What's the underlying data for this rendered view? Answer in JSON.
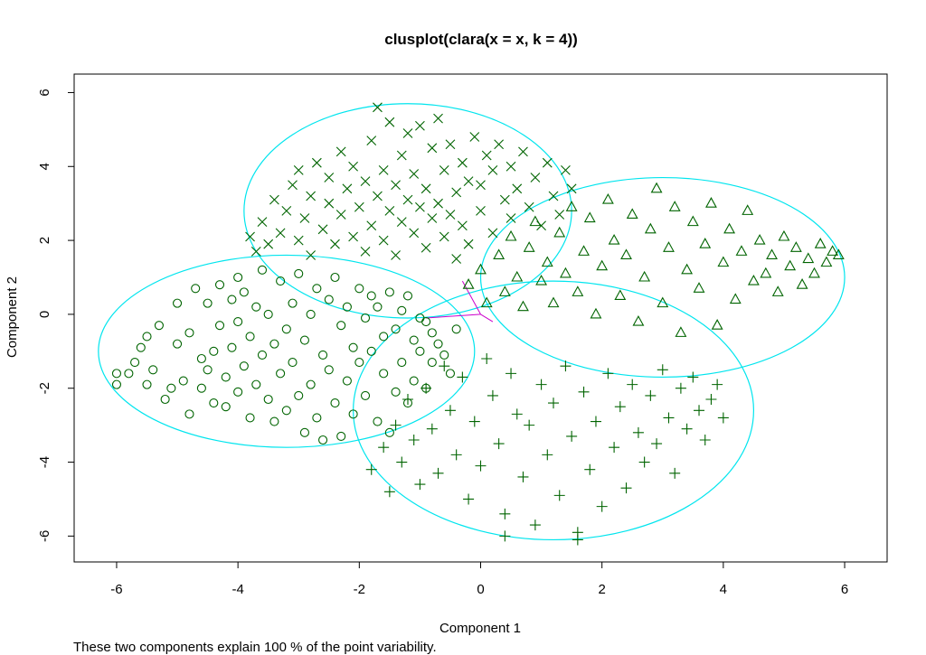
{
  "chart_data": {
    "type": "scatter",
    "title": "clusplot(clara(x = x, k = 4))",
    "xlabel": "Component 1",
    "ylabel": "Component 2",
    "footnote": "These two components explain 100 % of the point variability.",
    "xlim": [
      -6.7,
      6.7
    ],
    "ylim": [
      -6.7,
      6.5
    ],
    "xticks": [
      -6,
      -4,
      -2,
      0,
      2,
      4,
      6
    ],
    "yticks": [
      -6,
      -4,
      -2,
      0,
      2,
      4,
      6
    ],
    "grid": false,
    "legend": "none",
    "colors": {
      "points": "#006400",
      "ellipses": "#00e5ee",
      "connectors": "#cc00cc",
      "axes": "#000000",
      "background": "#ffffff"
    },
    "ellipses": [
      {
        "cx": -3.2,
        "cy": -1.0,
        "rx": 3.1,
        "ry": 2.6
      },
      {
        "cx": -1.2,
        "cy": 2.8,
        "rx": 2.7,
        "ry": 2.9
      },
      {
        "cx": 3.0,
        "cy": 1.0,
        "rx": 3.0,
        "ry": 2.7
      },
      {
        "cx": 1.2,
        "cy": -2.6,
        "rx": 3.3,
        "ry": 3.5
      }
    ],
    "connectors": [
      {
        "from": [
          -0.3,
          0.9
        ],
        "to": [
          0.0,
          0.0
        ]
      },
      {
        "from": [
          -0.9,
          -0.1
        ],
        "to": [
          0.0,
          0.0
        ]
      },
      {
        "from": [
          0.0,
          0.0
        ],
        "to": [
          0.2,
          -0.2
        ]
      }
    ],
    "series": [
      {
        "marker": "circle",
        "points": [
          [
            -6.0,
            -1.6
          ],
          [
            -6.0,
            -1.9
          ],
          [
            -5.8,
            -1.6
          ],
          [
            -5.7,
            -1.3
          ],
          [
            -5.6,
            -0.9
          ],
          [
            -5.5,
            -1.9
          ],
          [
            -5.5,
            -0.6
          ],
          [
            -5.4,
            -1.5
          ],
          [
            -5.3,
            -0.3
          ],
          [
            -5.2,
            -2.3
          ],
          [
            -5.1,
            -2.0
          ],
          [
            -5.0,
            -0.8
          ],
          [
            -5.0,
            0.3
          ],
          [
            -4.9,
            -1.8
          ],
          [
            -4.8,
            -0.5
          ],
          [
            -4.8,
            -2.7
          ],
          [
            -4.7,
            0.7
          ],
          [
            -4.6,
            -1.2
          ],
          [
            -4.6,
            -2.0
          ],
          [
            -4.5,
            0.3
          ],
          [
            -4.5,
            -1.5
          ],
          [
            -4.4,
            -1.0
          ],
          [
            -4.4,
            -2.4
          ],
          [
            -4.3,
            0.8
          ],
          [
            -4.3,
            -0.3
          ],
          [
            -4.2,
            -1.7
          ],
          [
            -4.2,
            -2.5
          ],
          [
            -4.1,
            0.4
          ],
          [
            -4.1,
            -0.9
          ],
          [
            -4.0,
            1.0
          ],
          [
            -4.0,
            -0.2
          ],
          [
            -4.0,
            -2.1
          ],
          [
            -3.9,
            -1.4
          ],
          [
            -3.9,
            0.6
          ],
          [
            -3.8,
            -2.8
          ],
          [
            -3.8,
            -0.6
          ],
          [
            -3.7,
            0.2
          ],
          [
            -3.7,
            -1.9
          ],
          [
            -3.6,
            1.2
          ],
          [
            -3.6,
            -1.1
          ],
          [
            -3.5,
            -2.3
          ],
          [
            -3.5,
            0.0
          ],
          [
            -3.4,
            -0.8
          ],
          [
            -3.4,
            -2.9
          ],
          [
            -3.3,
            0.9
          ],
          [
            -3.3,
            -1.6
          ],
          [
            -3.2,
            -0.4
          ],
          [
            -3.2,
            -2.6
          ],
          [
            -3.1,
            0.3
          ],
          [
            -3.1,
            -1.3
          ],
          [
            -3.0,
            1.1
          ],
          [
            -3.0,
            -2.2
          ],
          [
            -2.9,
            -0.7
          ],
          [
            -2.9,
            -3.2
          ],
          [
            -2.8,
            0.0
          ],
          [
            -2.8,
            -1.9
          ],
          [
            -2.7,
            0.7
          ],
          [
            -2.7,
            -2.8
          ],
          [
            -2.6,
            -1.1
          ],
          [
            -2.6,
            -3.4
          ],
          [
            -2.5,
            0.4
          ],
          [
            -2.5,
            -1.5
          ],
          [
            -2.4,
            1.0
          ],
          [
            -2.4,
            -2.4
          ],
          [
            -2.3,
            -0.3
          ],
          [
            -2.3,
            -3.3
          ],
          [
            -2.2,
            0.2
          ],
          [
            -2.2,
            -1.8
          ],
          [
            -2.1,
            -0.9
          ],
          [
            -2.1,
            -2.7
          ],
          [
            -2.0,
            0.7
          ],
          [
            -2.0,
            -1.3
          ],
          [
            -1.9,
            -0.1
          ],
          [
            -1.9,
            -2.2
          ],
          [
            -1.8,
            0.5
          ],
          [
            -1.8,
            -1.0
          ],
          [
            -1.7,
            0.2
          ],
          [
            -1.7,
            -2.9
          ],
          [
            -1.6,
            -0.6
          ],
          [
            -1.6,
            -1.6
          ],
          [
            -1.5,
            0.6
          ],
          [
            -1.5,
            -3.2
          ],
          [
            -1.4,
            -0.4
          ],
          [
            -1.4,
            -2.1
          ],
          [
            -1.3,
            0.1
          ],
          [
            -1.3,
            -1.3
          ],
          [
            -1.2,
            0.5
          ],
          [
            -1.2,
            -2.4
          ],
          [
            -1.1,
            -0.7
          ],
          [
            -1.1,
            -1.8
          ],
          [
            -1.0,
            -0.1
          ],
          [
            -1.0,
            -1.0
          ],
          [
            -0.9,
            -0.2
          ],
          [
            -0.9,
            -2.0
          ],
          [
            -0.8,
            -0.5
          ],
          [
            -0.8,
            -1.3
          ],
          [
            -0.7,
            -0.8
          ],
          [
            -0.6,
            -1.1
          ],
          [
            -0.5,
            -1.6
          ],
          [
            -0.4,
            -0.4
          ]
        ]
      },
      {
        "marker": "cross",
        "points": [
          [
            -3.8,
            2.1
          ],
          [
            -3.7,
            1.7
          ],
          [
            -3.6,
            2.5
          ],
          [
            -3.5,
            1.9
          ],
          [
            -3.4,
            3.1
          ],
          [
            -3.3,
            2.2
          ],
          [
            -3.2,
            2.8
          ],
          [
            -3.1,
            3.5
          ],
          [
            -3.0,
            2.0
          ],
          [
            -3.0,
            3.9
          ],
          [
            -2.9,
            2.6
          ],
          [
            -2.8,
            3.2
          ],
          [
            -2.8,
            1.6
          ],
          [
            -2.7,
            4.1
          ],
          [
            -2.6,
            2.3
          ],
          [
            -2.5,
            3.0
          ],
          [
            -2.5,
            3.7
          ],
          [
            -2.4,
            1.9
          ],
          [
            -2.3,
            4.4
          ],
          [
            -2.3,
            2.7
          ],
          [
            -2.2,
            3.4
          ],
          [
            -2.1,
            2.1
          ],
          [
            -2.1,
            4.0
          ],
          [
            -2.0,
            2.9
          ],
          [
            -1.9,
            3.6
          ],
          [
            -1.9,
            1.7
          ],
          [
            -1.8,
            4.7
          ],
          [
            -1.8,
            2.4
          ],
          [
            -1.7,
            3.2
          ],
          [
            -1.7,
            5.6
          ],
          [
            -1.6,
            2.0
          ],
          [
            -1.6,
            3.9
          ],
          [
            -1.5,
            2.8
          ],
          [
            -1.5,
            5.2
          ],
          [
            -1.4,
            3.5
          ],
          [
            -1.4,
            1.6
          ],
          [
            -1.3,
            4.3
          ],
          [
            -1.3,
            2.5
          ],
          [
            -1.2,
            3.1
          ],
          [
            -1.2,
            4.9
          ],
          [
            -1.1,
            2.2
          ],
          [
            -1.1,
            3.8
          ],
          [
            -1.0,
            2.9
          ],
          [
            -1.0,
            5.1
          ],
          [
            -0.9,
            1.8
          ],
          [
            -0.9,
            3.4
          ],
          [
            -0.8,
            4.5
          ],
          [
            -0.8,
            2.6
          ],
          [
            -0.7,
            3.0
          ],
          [
            -0.7,
            5.3
          ],
          [
            -0.6,
            2.1
          ],
          [
            -0.6,
            3.9
          ],
          [
            -0.5,
            2.7
          ],
          [
            -0.5,
            4.6
          ],
          [
            -0.4,
            1.5
          ],
          [
            -0.4,
            3.3
          ],
          [
            -0.3,
            2.4
          ],
          [
            -0.3,
            4.1
          ],
          [
            -0.2,
            3.6
          ],
          [
            -0.2,
            1.9
          ],
          [
            -0.1,
            4.8
          ],
          [
            0.0,
            2.8
          ],
          [
            0.0,
            3.5
          ],
          [
            0.1,
            4.3
          ],
          [
            0.2,
            2.2
          ],
          [
            0.2,
            3.9
          ],
          [
            0.3,
            4.6
          ],
          [
            0.4,
            3.1
          ],
          [
            0.5,
            2.6
          ],
          [
            0.5,
            4.0
          ],
          [
            0.6,
            3.4
          ],
          [
            0.7,
            4.4
          ],
          [
            0.8,
            2.9
          ],
          [
            0.9,
            3.7
          ],
          [
            1.0,
            2.4
          ],
          [
            1.1,
            4.1
          ],
          [
            1.2,
            3.2
          ],
          [
            1.3,
            2.7
          ],
          [
            1.4,
            3.9
          ],
          [
            1.5,
            3.4
          ]
        ]
      },
      {
        "marker": "triangle",
        "points": [
          [
            -0.2,
            0.8
          ],
          [
            0.0,
            1.2
          ],
          [
            0.1,
            0.3
          ],
          [
            0.3,
            1.6
          ],
          [
            0.4,
            0.6
          ],
          [
            0.5,
            2.1
          ],
          [
            0.6,
            1.0
          ],
          [
            0.7,
            0.2
          ],
          [
            0.8,
            1.8
          ],
          [
            0.9,
            2.5
          ],
          [
            1.0,
            0.9
          ],
          [
            1.1,
            1.4
          ],
          [
            1.2,
            0.3
          ],
          [
            1.3,
            2.2
          ],
          [
            1.4,
            1.1
          ],
          [
            1.5,
            2.9
          ],
          [
            1.6,
            0.6
          ],
          [
            1.7,
            1.7
          ],
          [
            1.8,
            2.6
          ],
          [
            1.9,
            0.0
          ],
          [
            2.0,
            1.3
          ],
          [
            2.1,
            3.1
          ],
          [
            2.2,
            2.0
          ],
          [
            2.3,
            0.5
          ],
          [
            2.4,
            1.6
          ],
          [
            2.5,
            2.7
          ],
          [
            2.6,
            -0.2
          ],
          [
            2.7,
            1.0
          ],
          [
            2.8,
            2.3
          ],
          [
            2.9,
            3.4
          ],
          [
            3.0,
            0.3
          ],
          [
            3.1,
            1.8
          ],
          [
            3.2,
            2.9
          ],
          [
            3.3,
            -0.5
          ],
          [
            3.4,
            1.2
          ],
          [
            3.5,
            2.5
          ],
          [
            3.6,
            0.7
          ],
          [
            3.7,
            1.9
          ],
          [
            3.8,
            3.0
          ],
          [
            3.9,
            -0.3
          ],
          [
            4.0,
            1.4
          ],
          [
            4.1,
            2.3
          ],
          [
            4.2,
            0.4
          ],
          [
            4.3,
            1.7
          ],
          [
            4.4,
            2.8
          ],
          [
            4.5,
            0.9
          ],
          [
            4.6,
            2.0
          ],
          [
            4.7,
            1.1
          ],
          [
            4.8,
            1.6
          ],
          [
            4.9,
            0.6
          ],
          [
            5.0,
            2.1
          ],
          [
            5.1,
            1.3
          ],
          [
            5.2,
            1.8
          ],
          [
            5.3,
            0.8
          ],
          [
            5.4,
            1.5
          ],
          [
            5.5,
            1.1
          ],
          [
            5.6,
            1.9
          ],
          [
            5.7,
            1.4
          ],
          [
            5.8,
            1.7
          ],
          [
            5.9,
            1.6
          ]
        ]
      },
      {
        "marker": "plus",
        "points": [
          [
            -1.8,
            -4.2
          ],
          [
            -1.6,
            -3.6
          ],
          [
            -1.5,
            -4.8
          ],
          [
            -1.4,
            -3.0
          ],
          [
            -1.3,
            -4.0
          ],
          [
            -1.2,
            -2.3
          ],
          [
            -1.1,
            -3.4
          ],
          [
            -1.0,
            -4.6
          ],
          [
            -0.9,
            -2.0
          ],
          [
            -0.8,
            -3.1
          ],
          [
            -0.7,
            -4.3
          ],
          [
            -0.6,
            -1.4
          ],
          [
            -0.5,
            -2.6
          ],
          [
            -0.4,
            -3.8
          ],
          [
            -0.3,
            -1.7
          ],
          [
            -0.2,
            -5.0
          ],
          [
            -0.1,
            -2.9
          ],
          [
            0.0,
            -4.1
          ],
          [
            0.1,
            -1.2
          ],
          [
            0.2,
            -2.2
          ],
          [
            0.3,
            -3.5
          ],
          [
            0.4,
            -5.4
          ],
          [
            0.5,
            -1.6
          ],
          [
            0.6,
            -2.7
          ],
          [
            0.7,
            -4.4
          ],
          [
            0.8,
            -3.0
          ],
          [
            0.9,
            -5.7
          ],
          [
            1.0,
            -1.9
          ],
          [
            1.1,
            -3.8
          ],
          [
            1.2,
            -2.4
          ],
          [
            1.3,
            -4.9
          ],
          [
            1.4,
            -1.4
          ],
          [
            1.5,
            -3.3
          ],
          [
            1.6,
            -5.9
          ],
          [
            1.7,
            -2.1
          ],
          [
            1.8,
            -4.2
          ],
          [
            1.9,
            -2.9
          ],
          [
            2.0,
            -5.2
          ],
          [
            2.1,
            -1.6
          ],
          [
            2.2,
            -3.6
          ],
          [
            2.3,
            -2.5
          ],
          [
            2.4,
            -4.7
          ],
          [
            2.5,
            -1.9
          ],
          [
            2.6,
            -3.2
          ],
          [
            2.7,
            -4.0
          ],
          [
            2.8,
            -2.2
          ],
          [
            2.9,
            -3.5
          ],
          [
            3.0,
            -1.5
          ],
          [
            3.1,
            -2.8
          ],
          [
            3.2,
            -4.3
          ],
          [
            3.3,
            -2.0
          ],
          [
            3.4,
            -3.1
          ],
          [
            3.5,
            -1.7
          ],
          [
            3.6,
            -2.6
          ],
          [
            3.7,
            -3.4
          ],
          [
            3.8,
            -2.3
          ],
          [
            3.9,
            -1.9
          ],
          [
            4.0,
            -2.8
          ],
          [
            1.6,
            -6.1
          ],
          [
            0.4,
            -6.0
          ]
        ]
      }
    ]
  }
}
